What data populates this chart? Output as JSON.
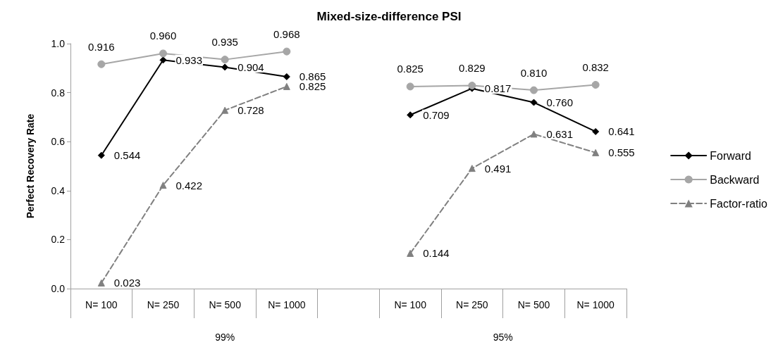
{
  "chart_data": {
    "type": "line",
    "title": "Mixed-size-difference PSI",
    "ylabel": "Perfect Recovery Rate",
    "categories": [
      "N= 100",
      "N= 250",
      "N= 500",
      "N= 1000",
      null,
      "N= 100",
      "N= 250",
      "N= 500",
      "N= 1000"
    ],
    "annotations": [
      "99%",
      "95%"
    ],
    "series": [
      {
        "name": "Forward",
        "color": "#000000",
        "marker": "diamond",
        "line_style": "solid",
        "values": [
          0.544,
          0.933,
          0.904,
          0.865,
          null,
          0.709,
          0.817,
          0.76,
          0.641
        ],
        "value_labels": [
          "0.544",
          "0.933",
          "0.904",
          "0.865",
          null,
          "0.709",
          "0.817",
          "0.760",
          "0.641"
        ]
      },
      {
        "name": "Backward",
        "color": "#a6a6a6",
        "marker": "circle",
        "line_style": "solid",
        "values": [
          0.916,
          0.96,
          0.935,
          0.968,
          null,
          0.825,
          0.829,
          0.81,
          0.832
        ],
        "value_labels": [
          "0.916",
          "0.960",
          "0.935",
          "0.968",
          null,
          "0.825",
          "0.829",
          "0.810",
          "0.832"
        ]
      },
      {
        "name": "Factor-ratio",
        "color": "#808080",
        "marker": "triangle",
        "line_style": "dashed",
        "values": [
          0.023,
          0.422,
          0.728,
          0.825,
          null,
          0.144,
          0.491,
          0.631,
          0.555
        ],
        "value_labels": [
          "0.023",
          "0.422",
          "0.728",
          "0.825",
          null,
          "0.144",
          "0.491",
          "0.631",
          "0.555"
        ]
      }
    ],
    "ylim": [
      0,
      1
    ],
    "yticks": [
      {
        "value": 0,
        "label": "0.0"
      },
      {
        "value": 0.2,
        "label": "0.2"
      },
      {
        "value": 0.4,
        "label": "0.4"
      },
      {
        "value": 0.6,
        "label": "0.6"
      },
      {
        "value": 0.8,
        "label": "0.8"
      },
      {
        "value": 1,
        "label": "1.0"
      }
    ],
    "grid": false,
    "legend": "right"
  }
}
